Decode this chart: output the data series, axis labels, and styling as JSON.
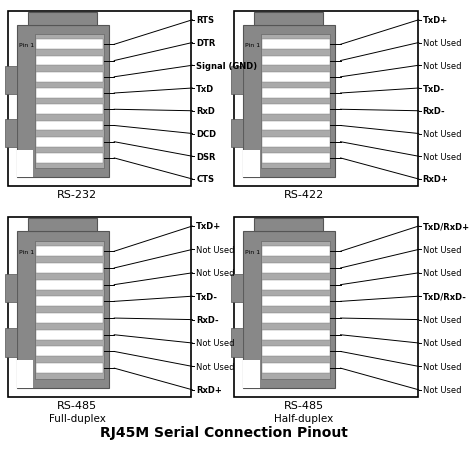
{
  "title": "RJ45M Serial Connection Pinout",
  "background": "#ffffff",
  "connector_gray": "#888888",
  "connector_dark": "#555555",
  "diagrams": [
    {
      "label": "RS-232",
      "sublabel": "",
      "pins": [
        "RTS",
        "DTR",
        "Signal (GND)",
        "TxD",
        "RxD",
        "DCD",
        "DSR",
        "CTS"
      ],
      "bold_pins": [
        "RTS",
        "DTR",
        "Signal (GND)",
        "TxD",
        "RxD",
        "DCD",
        "DSR",
        "CTS"
      ]
    },
    {
      "label": "RS-422",
      "sublabel": "",
      "pins": [
        "TxD+",
        "Not Used",
        "Not Used",
        "TxD-",
        "RxD-",
        "Not Used",
        "Not Used",
        "RxD+"
      ],
      "bold_pins": [
        "TxD+",
        "TxD-",
        "RxD-",
        "RxD+"
      ]
    },
    {
      "label": "RS-485",
      "sublabel": "Full-duplex",
      "pins": [
        "TxD+",
        "Not Used",
        "Not Used",
        "TxD-",
        "RxD-",
        "Not Used",
        "Not Used",
        "RxD+"
      ],
      "bold_pins": [
        "TxD+",
        "TxD-",
        "RxD-",
        "RxD+"
      ]
    },
    {
      "label": "RS-485",
      "sublabel": "Half-duplex",
      "pins": [
        "TxD/RxD+",
        "Not Used",
        "Not Used",
        "TxD/RxD-",
        "Not Used",
        "Not Used",
        "Not Used",
        "Not Used"
      ],
      "bold_pins": [
        "TxD/RxD+",
        "TxD/RxD-"
      ]
    }
  ]
}
